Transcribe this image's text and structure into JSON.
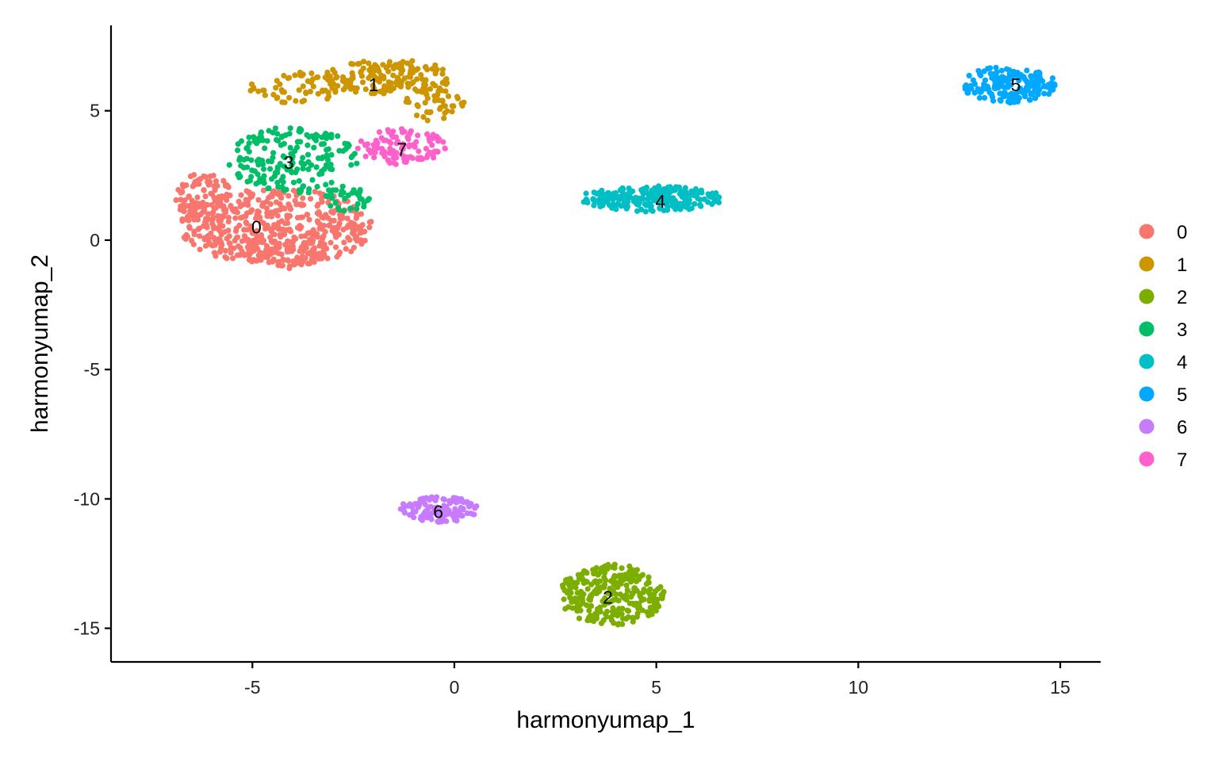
{
  "chart_data": {
    "type": "scatter",
    "title": "",
    "xlabel": "harmonyumap_1",
    "ylabel": "harmonyumap_2",
    "xlim": [
      -8.5,
      16
    ],
    "ylim": [
      -16.3,
      8.3
    ],
    "xticks": [
      -5,
      0,
      5,
      10,
      15
    ],
    "yticks": [
      5,
      0,
      -5,
      -10,
      -15
    ],
    "xtick_labels": [
      "-5",
      "0",
      "5",
      "10",
      "15"
    ],
    "ytick_labels": [
      "5",
      "0",
      "-5",
      "-10",
      "-15"
    ],
    "grid": false,
    "legend_position": "right",
    "series": [
      {
        "name": "0",
        "color": "#F8766D",
        "label_pos": [
          -4.9,
          0.5
        ],
        "clusters": [
          {
            "cx": -4.4,
            "cy": 0.5,
            "rx": 2.4,
            "ry": 1.5,
            "n": 480
          },
          {
            "cx": -6.2,
            "cy": 1.6,
            "rx": 0.7,
            "ry": 1.0,
            "n": 90
          },
          {
            "cx": -4.2,
            "cy": -0.5,
            "rx": 1.0,
            "ry": 0.6,
            "n": 60
          }
        ]
      },
      {
        "name": "1",
        "color": "#CD9600",
        "label_pos": [
          -2.0,
          6.0
        ],
        "clusters": [
          {
            "cx": -1.6,
            "cy": 6.3,
            "rx": 1.6,
            "ry": 0.7,
            "n": 160
          },
          {
            "cx": -3.9,
            "cy": 5.9,
            "rx": 1.2,
            "ry": 0.6,
            "n": 60
          },
          {
            "cx": -0.5,
            "cy": 5.2,
            "rx": 0.8,
            "ry": 0.6,
            "n": 40
          }
        ]
      },
      {
        "name": "2",
        "color": "#7CAE00",
        "label_pos": [
          3.8,
          -13.8
        ],
        "clusters": [
          {
            "cx": 3.9,
            "cy": -13.7,
            "rx": 1.3,
            "ry": 1.2,
            "n": 280
          }
        ]
      },
      {
        "name": "3",
        "color": "#00BE67",
        "label_pos": [
          -4.1,
          3.0
        ],
        "clusters": [
          {
            "cx": -4.0,
            "cy": 3.1,
            "rx": 1.6,
            "ry": 1.3,
            "n": 190
          },
          {
            "cx": -2.7,
            "cy": 1.6,
            "rx": 0.6,
            "ry": 0.5,
            "n": 35
          }
        ]
      },
      {
        "name": "4",
        "color": "#00BFC4",
        "label_pos": [
          5.1,
          1.5
        ],
        "clusters": [
          {
            "cx": 4.9,
            "cy": 1.6,
            "rx": 1.8,
            "ry": 0.5,
            "n": 230
          }
        ]
      },
      {
        "name": "5",
        "color": "#00A9FF",
        "label_pos": [
          13.9,
          6.0
        ],
        "clusters": [
          {
            "cx": 13.7,
            "cy": 6.0,
            "rx": 1.2,
            "ry": 0.7,
            "n": 175
          }
        ]
      },
      {
        "name": "6",
        "color": "#C77CFF",
        "label_pos": [
          -0.4,
          -10.5
        ],
        "clusters": [
          {
            "cx": -0.4,
            "cy": -10.4,
            "rx": 1.0,
            "ry": 0.5,
            "n": 120
          }
        ]
      },
      {
        "name": "7",
        "color": "#FF61CC",
        "label_pos": [
          -1.3,
          3.5
        ],
        "clusters": [
          {
            "cx": -1.3,
            "cy": 3.6,
            "rx": 1.1,
            "ry": 0.7,
            "n": 110
          }
        ]
      }
    ]
  }
}
